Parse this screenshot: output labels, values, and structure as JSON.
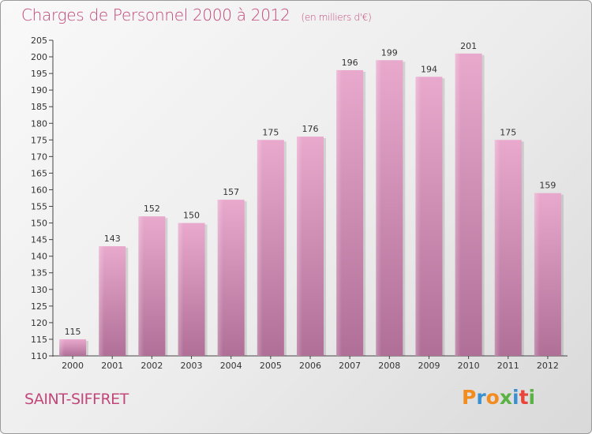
{
  "title": "Charges de Personnel 2000 à 2012",
  "subtitle": "(en milliers d'€)",
  "commune": "SAINT-SIFFRET",
  "logo": {
    "text": "Proxiti",
    "letters": [
      "P",
      "r",
      "o",
      "x",
      "i",
      "t",
      "i"
    ],
    "colors": [
      "#f28c1e",
      "#3a8fd1",
      "#f28c1e",
      "#5ab245",
      "#3a8fd1",
      "#e8443a",
      "#5ab245"
    ]
  },
  "colors": {
    "bar": "#d88ab4",
    "bar_light": "#e7a8cc",
    "bar_dark": "#b8749b",
    "accent": "#c2477a"
  },
  "chart_data": {
    "type": "bar",
    "title": "Charges de Personnel 2000 à 2012",
    "subtitle": "(en milliers d'€)",
    "categories": [
      "2000",
      "2001",
      "2002",
      "2003",
      "2004",
      "2005",
      "2006",
      "2007",
      "2008",
      "2009",
      "2010",
      "2011",
      "2012"
    ],
    "values": [
      115,
      143,
      152,
      150,
      157,
      175,
      176,
      196,
      199,
      194,
      201,
      175,
      159
    ],
    "ylim": [
      110,
      205
    ],
    "yticks": [
      110,
      115,
      120,
      125,
      130,
      135,
      140,
      145,
      150,
      155,
      160,
      165,
      170,
      175,
      180,
      185,
      190,
      195,
      200,
      205
    ],
    "grid": false,
    "data_labels": true
  }
}
